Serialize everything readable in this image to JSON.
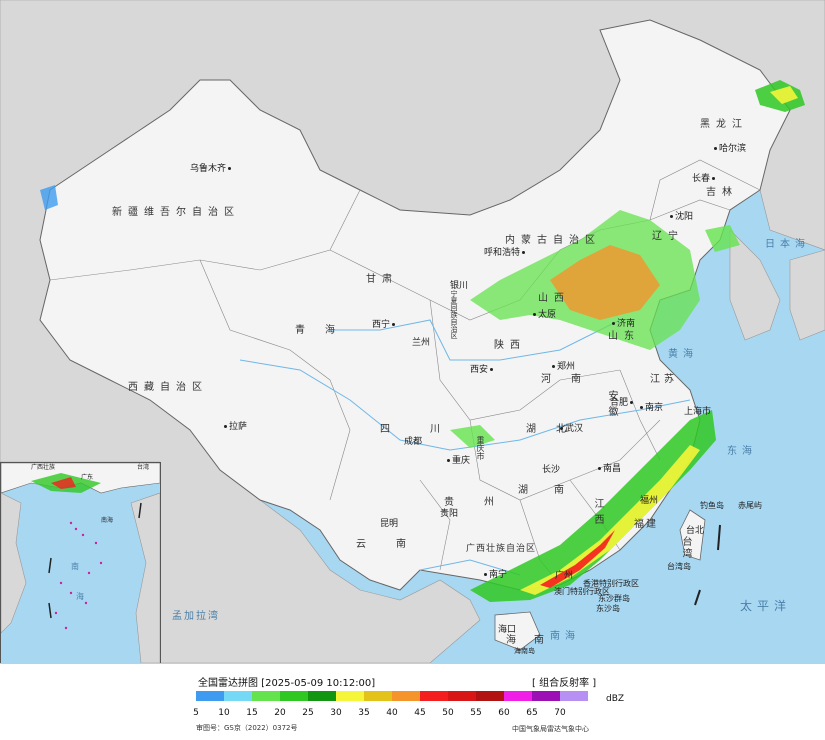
{
  "title": "全国雷达拼图 [2025-05-09 10:12:00]",
  "product": "[ 组合反射率 ]",
  "unit": "dBZ",
  "footer_left": "审图号：GS京（2022）0372号",
  "footer_right": "中国气象局雷达气象中心",
  "legend": {
    "values": [
      "5",
      "10",
      "15",
      "20",
      "25",
      "30",
      "35",
      "40",
      "45",
      "50",
      "55",
      "60",
      "65",
      "70"
    ],
    "colors": [
      "#3e9bf0",
      "#75d9f5",
      "#65e34e",
      "#2fc823",
      "#129612",
      "#f5f53a",
      "#e3c21a",
      "#f5942a",
      "#f51e1e",
      "#d81616",
      "#b31212",
      "#f01ee6",
      "#9c0fb5",
      "#b690f2"
    ]
  },
  "provinces": [
    {
      "name": "新疆维吾尔自治区",
      "id": "xinjiang"
    },
    {
      "name": "西藏自治区",
      "id": "xizang"
    },
    {
      "name": "青海",
      "id": "qinghai"
    },
    {
      "name": "甘肃",
      "id": "gansu"
    },
    {
      "name": "内蒙古自治区",
      "id": "neimenggu"
    },
    {
      "name": "黑龙江",
      "id": "heilongjiang"
    },
    {
      "name": "吉林",
      "id": "jilin"
    },
    {
      "name": "辽宁",
      "id": "liaoning"
    },
    {
      "name": "四川",
      "id": "sichuan"
    },
    {
      "name": "云南",
      "id": "yunnan"
    },
    {
      "name": "贵州",
      "id": "guizhou"
    },
    {
      "name": "湖南",
      "id": "hunan"
    },
    {
      "name": "湖北",
      "id": "hubei"
    },
    {
      "name": "河南",
      "id": "henan"
    },
    {
      "name": "山西",
      "id": "shanxi"
    },
    {
      "name": "陕西",
      "id": "shaanxi"
    },
    {
      "name": "宁夏回族自治区",
      "id": "ningxia"
    },
    {
      "name": "山东",
      "id": "shandong"
    },
    {
      "name": "江苏",
      "id": "jiangsu"
    },
    {
      "name": "安徽",
      "id": "anhui"
    },
    {
      "name": "江西",
      "id": "jiangxi"
    },
    {
      "name": "福建",
      "id": "fujian"
    },
    {
      "name": "广西壮族自治区",
      "id": "guangxi"
    },
    {
      "name": "重庆市",
      "id": "chongqing"
    },
    {
      "name": "台湾",
      "id": "taiwan"
    },
    {
      "name": "海南",
      "id": "hainan"
    },
    {
      "name": "香港特别行政区",
      "id": "hongkong"
    },
    {
      "name": "澳门特别行政区",
      "id": "macau"
    }
  ],
  "cities": [
    {
      "name": "乌鲁木齐",
      "id": "urumqi"
    },
    {
      "name": "哈尔滨",
      "id": "harbin"
    },
    {
      "name": "长春",
      "id": "changchun"
    },
    {
      "name": "沈阳",
      "id": "shenyang"
    },
    {
      "name": "呼和浩特",
      "id": "hohhot"
    },
    {
      "name": "银川",
      "id": "yinchuan"
    },
    {
      "name": "太原",
      "id": "taiyuan"
    },
    {
      "name": "济南",
      "id": "jinan"
    },
    {
      "name": "西宁",
      "id": "xining"
    },
    {
      "name": "兰州",
      "id": "lanzhou"
    },
    {
      "name": "西安",
      "id": "xian"
    },
    {
      "name": "郑州",
      "id": "zhengzhou"
    },
    {
      "name": "合肥",
      "id": "hefei"
    },
    {
      "name": "南京",
      "id": "nanjing"
    },
    {
      "name": "上海市",
      "id": "shanghai"
    },
    {
      "name": "武汉",
      "id": "wuhan"
    },
    {
      "name": "成都",
      "id": "chengdu"
    },
    {
      "name": "重庆",
      "id": "chongqing"
    },
    {
      "name": "拉萨",
      "id": "lhasa"
    },
    {
      "name": "长沙",
      "id": "changsha"
    },
    {
      "name": "南昌",
      "id": "nanchang"
    },
    {
      "name": "福州",
      "id": "fuzhou"
    },
    {
      "name": "贵阳",
      "id": "guiyang"
    },
    {
      "name": "昆明",
      "id": "kunming"
    },
    {
      "name": "南宁",
      "id": "nanning"
    },
    {
      "name": "广州",
      "id": "guangzhou"
    },
    {
      "name": "台北",
      "id": "taipei"
    },
    {
      "name": "海口",
      "id": "haikou"
    }
  ],
  "seas": [
    {
      "name": "日本海",
      "id": "japan-sea"
    },
    {
      "name": "黄海",
      "id": "yellow-sea"
    },
    {
      "name": "东海",
      "id": "east-sea"
    },
    {
      "name": "太平洋",
      "id": "pacific"
    },
    {
      "name": "南海",
      "id": "south-sea"
    },
    {
      "name": "孟加拉湾",
      "id": "bengal"
    }
  ],
  "islands": [
    {
      "name": "钓鱼岛",
      "id": "diaoyu"
    },
    {
      "name": "赤尾屿",
      "id": "chiwei"
    },
    {
      "name": "东沙群岛",
      "id": "dongsha"
    },
    {
      "name": "东沙岛",
      "id": "dongsha-island"
    },
    {
      "name": "台湾岛",
      "id": "taiwan-island"
    },
    {
      "name": "海南岛",
      "id": "hainan-island"
    }
  ],
  "inset": {
    "labels": [
      "广西壮族",
      "台湾",
      "广东",
      "南海",
      "南",
      "海"
    ]
  }
}
